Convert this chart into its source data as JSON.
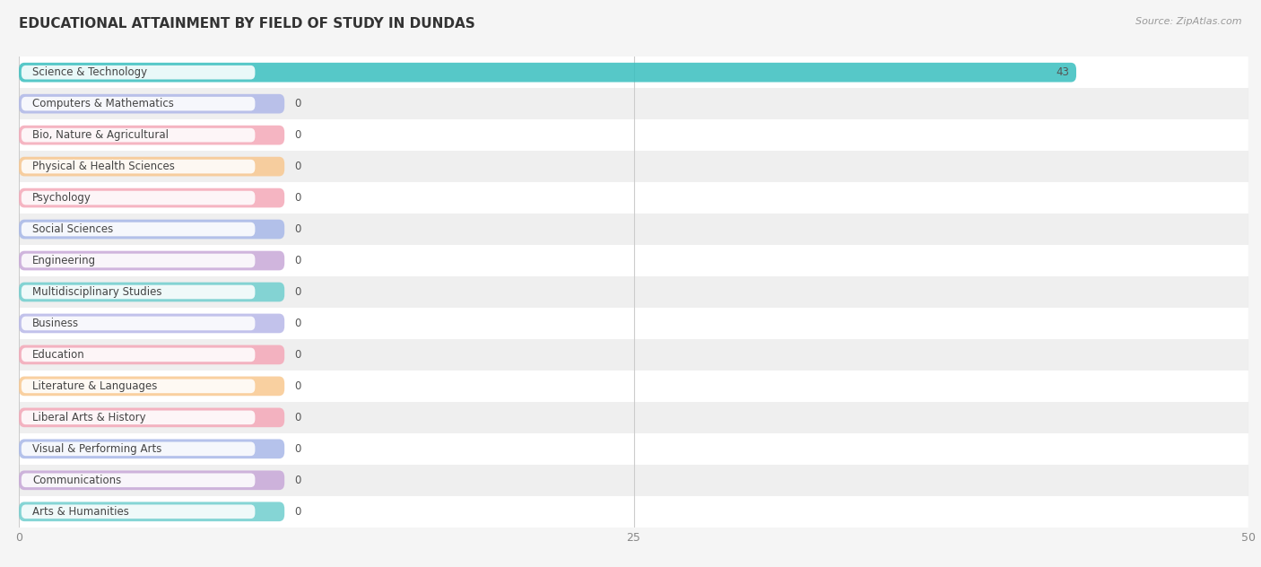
{
  "title": "EDUCATIONAL ATTAINMENT BY FIELD OF STUDY IN DUNDAS",
  "source": "Source: ZipAtlas.com",
  "categories": [
    "Science & Technology",
    "Computers & Mathematics",
    "Bio, Nature & Agricultural",
    "Physical & Health Sciences",
    "Psychology",
    "Social Sciences",
    "Engineering",
    "Multidisciplinary Studies",
    "Business",
    "Education",
    "Literature & Languages",
    "Liberal Arts & History",
    "Visual & Performing Arts",
    "Communications",
    "Arts & Humanities"
  ],
  "values": [
    43,
    0,
    0,
    0,
    0,
    0,
    0,
    0,
    0,
    0,
    0,
    0,
    0,
    0,
    0
  ],
  "bar_colors": [
    "#38bfbf",
    "#b0b8e8",
    "#f4a8b8",
    "#f8c890",
    "#f4a8b8",
    "#a8b8e8",
    "#c8a8d8",
    "#70cece",
    "#b8b8e8",
    "#f4a8b8",
    "#f8c890",
    "#f4a8b8",
    "#a8b8e8",
    "#c8a8d8",
    "#70cece"
  ],
  "xlim": [
    0,
    50
  ],
  "xticks": [
    0,
    25,
    50
  ],
  "background_color": "#f5f5f5",
  "row_colors": [
    "#ffffff",
    "#efefef"
  ],
  "title_fontsize": 11,
  "label_fontsize": 8.5
}
